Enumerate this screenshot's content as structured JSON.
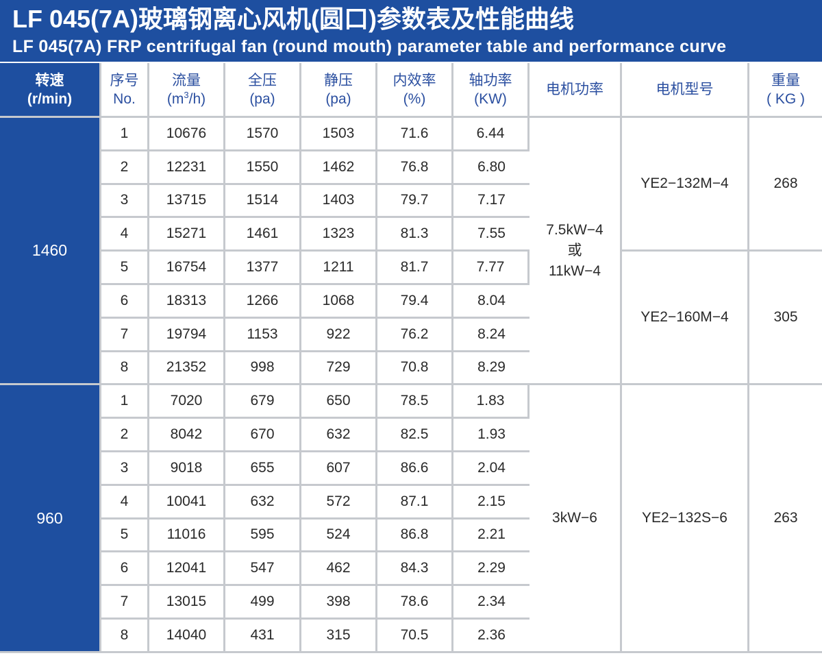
{
  "title": {
    "cn": "LF 045(7A)玻璃钢离心风机(圆口)参数表及性能曲线",
    "en": "LF 045(7A) FRP centrifugal fan (round mouth) parameter table and performance curve"
  },
  "headers": {
    "speed": {
      "l1": "转速",
      "l2": "(r/min)"
    },
    "no": {
      "l1": "序号",
      "l2": "No."
    },
    "flow": {
      "l1": "流量",
      "l2_pre": "(m",
      "l2_sup": "3",
      "l2_post": "/h)"
    },
    "total_pressure": {
      "l1": "全压",
      "l2": "(pa)"
    },
    "static_pressure": {
      "l1": "静压",
      "l2": "(pa)"
    },
    "efficiency": {
      "l1": "内效率",
      "l2": "(%)"
    },
    "shaft_power": {
      "l1": "轴功率",
      "l2": "(KW)"
    },
    "motor_power": "电机功率",
    "motor_model": "电机型号",
    "weight": {
      "l1": "重量",
      "l2": "( KG )"
    }
  },
  "groups": [
    {
      "speed": "1460",
      "motor_power": {
        "l1": "7.5kW−4",
        "l2": "或",
        "l3": "11kW−4"
      },
      "models": [
        {
          "model": "YE2−132M−4",
          "weight": "268"
        },
        {
          "model": "YE2−160M−4",
          "weight": "305"
        }
      ],
      "rows": [
        [
          "1",
          "10676",
          "1570",
          "1503",
          "71.6",
          "6.44"
        ],
        [
          "2",
          "12231",
          "1550",
          "1462",
          "76.8",
          "6.80"
        ],
        [
          "3",
          "13715",
          "1514",
          "1403",
          "79.7",
          "7.17"
        ],
        [
          "4",
          "15271",
          "1461",
          "1323",
          "81.3",
          "7.55"
        ],
        [
          "5",
          "16754",
          "1377",
          "1211",
          "81.7",
          "7.77"
        ],
        [
          "6",
          "18313",
          "1266",
          "1068",
          "79.4",
          "8.04"
        ],
        [
          "7",
          "19794",
          "1153",
          "922",
          "76.2",
          "8.24"
        ],
        [
          "8",
          "21352",
          "998",
          "729",
          "70.8",
          "8.29"
        ]
      ]
    },
    {
      "speed": "960",
      "motor_power": {
        "l1": "3kW−6"
      },
      "models": [
        {
          "model": "YE2−132S−6",
          "weight": "263"
        }
      ],
      "rows": [
        [
          "1",
          "7020",
          "679",
          "650",
          "78.5",
          "1.83"
        ],
        [
          "2",
          "8042",
          "670",
          "632",
          "82.5",
          "1.93"
        ],
        [
          "3",
          "9018",
          "655",
          "607",
          "86.6",
          "2.04"
        ],
        [
          "4",
          "10041",
          "632",
          "572",
          "87.1",
          "2.15"
        ],
        [
          "5",
          "11016",
          "595",
          "524",
          "86.8",
          "2.21"
        ],
        [
          "6",
          "12041",
          "547",
          "462",
          "84.3",
          "2.29"
        ],
        [
          "7",
          "13015",
          "499",
          "398",
          "78.6",
          "2.34"
        ],
        [
          "8",
          "14040",
          "431",
          "315",
          "70.5",
          "2.36"
        ]
      ]
    }
  ],
  "colors": {
    "header_blue": "#1e4fa0",
    "header_text": "#2b4fa0",
    "grid": "#c6c9ce"
  }
}
